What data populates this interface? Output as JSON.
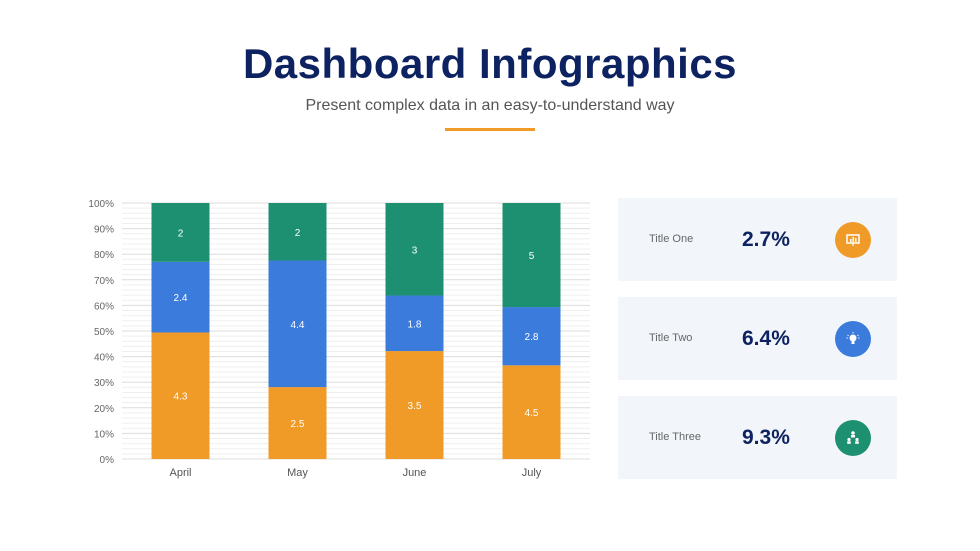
{
  "header": {
    "title": "Dashboard Infographics",
    "subtitle": "Present complex data in an easy-to-understand way",
    "accent_color": "#f09a27"
  },
  "chart_data": {
    "type": "bar",
    "stacked": "percent",
    "categories": [
      "April",
      "May",
      "June",
      "July"
    ],
    "series": [
      {
        "values": [
          4.3,
          2.5,
          3.5,
          4.5
        ],
        "color": "#f09a27"
      },
      {
        "values": [
          2.4,
          4.4,
          1.8,
          2.8
        ],
        "color": "#3a7bdc"
      },
      {
        "values": [
          2,
          2,
          3,
          5
        ],
        "color": "#1c9070"
      }
    ],
    "ylim": [
      0,
      100
    ],
    "yticks": [
      "0%",
      "10%",
      "20%",
      "30%",
      "40%",
      "50%",
      "60%",
      "70%",
      "80%",
      "90%",
      "100%"
    ],
    "grid": true
  },
  "cards": [
    {
      "label": "Title One",
      "value": "2.7%",
      "icon": "presentation-chart-icon",
      "color": "#f09a27"
    },
    {
      "label": "Title Two",
      "value": "6.4%",
      "icon": "lightbulb-icon",
      "color": "#3a7bdc"
    },
    {
      "label": "Title Three",
      "value": "9.3%",
      "icon": "team-hierarchy-icon",
      "color": "#1c9070"
    }
  ]
}
